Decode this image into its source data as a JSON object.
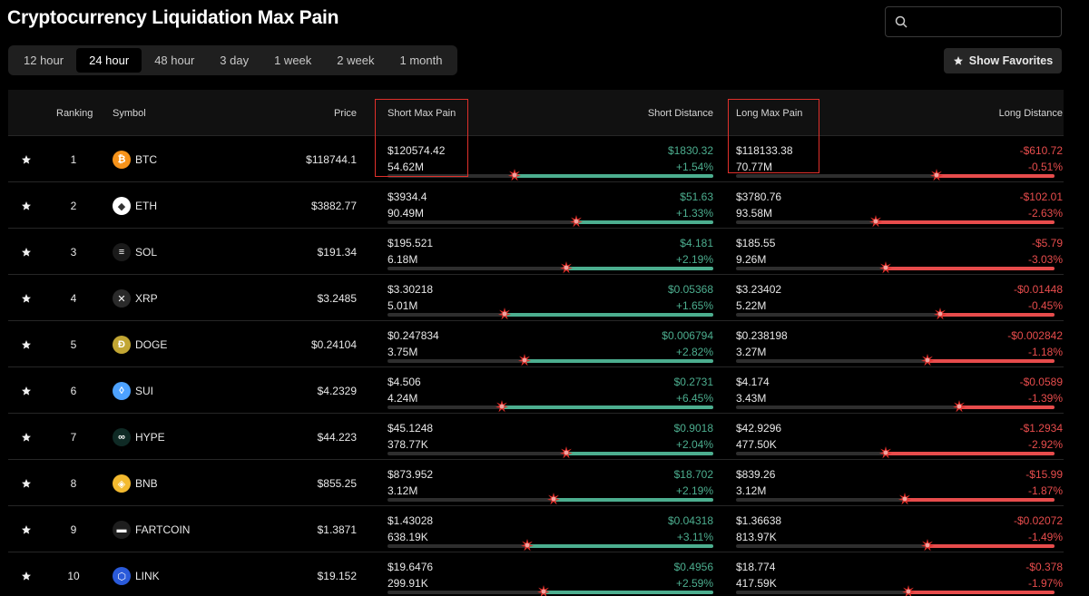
{
  "page": {
    "title": "Cryptocurrency Liquidation Max Pain"
  },
  "search": {
    "placeholder": "",
    "icon": "search-icon"
  },
  "tabs": [
    {
      "label": "12 hour",
      "active": false
    },
    {
      "label": "24 hour",
      "active": true
    },
    {
      "label": "48 hour",
      "active": false
    },
    {
      "label": "3 day",
      "active": false
    },
    {
      "label": "1 week",
      "active": false
    },
    {
      "label": "2 week",
      "active": false
    },
    {
      "label": "1 month",
      "active": false
    }
  ],
  "favorites_button": {
    "label": "Show Favorites",
    "icon": "star-icon"
  },
  "table": {
    "headers": {
      "ranking": "Ranking",
      "symbol": "Symbol",
      "price": "Price",
      "short_max_pain": "Short Max Pain",
      "short_distance": "Short Distance",
      "long_max_pain": "Long Max Pain",
      "long_distance": "Long Distance"
    },
    "rows": [
      {
        "rank": "1",
        "symbol": "BTC",
        "price": "$118744.1",
        "short_price": "$120574.42",
        "short_amount": "54.62M",
        "short_dist": "$1830.32",
        "short_pct": "+1.54%",
        "short_level": 0.61,
        "long_price": "$118133.38",
        "long_amount": "70.77M",
        "long_dist": "-$610.72",
        "long_pct": "-0.51%",
        "long_level": 0.37,
        "icon_color": "#f7931a",
        "icon_glyph": "₿"
      },
      {
        "rank": "2",
        "symbol": "ETH",
        "price": "$3882.77",
        "short_price": "$3934.4",
        "short_amount": "90.49M",
        "short_dist": "$51.63",
        "short_pct": "+1.33%",
        "short_level": 0.42,
        "long_price": "$3780.76",
        "long_amount": "93.58M",
        "long_dist": "-$102.01",
        "long_pct": "-2.63%",
        "long_level": 0.56,
        "icon_color": "#ffffff",
        "icon_glyph": "◆"
      },
      {
        "rank": "3",
        "symbol": "SOL",
        "price": "$191.34",
        "short_price": "$195.521",
        "short_amount": "6.18M",
        "short_dist": "$4.181",
        "short_pct": "+2.19%",
        "short_level": 0.45,
        "long_price": "$185.55",
        "long_amount": "9.26M",
        "long_dist": "-$5.79",
        "long_pct": "-3.03%",
        "long_level": 0.53,
        "icon_color": "#1a1a1a",
        "icon_glyph": "≡"
      },
      {
        "rank": "4",
        "symbol": "XRP",
        "price": "$3.2485",
        "short_price": "$3.30218",
        "short_amount": "5.01M",
        "short_dist": "$0.05368",
        "short_pct": "+1.65%",
        "short_level": 0.64,
        "long_price": "$3.23402",
        "long_amount": "5.22M",
        "long_dist": "-$0.01448",
        "long_pct": "-0.45%",
        "long_level": 0.36,
        "icon_color": "#2a2a2a",
        "icon_glyph": "✕"
      },
      {
        "rank": "5",
        "symbol": "DOGE",
        "price": "$0.24104",
        "short_price": "$0.247834",
        "short_amount": "3.75M",
        "short_dist": "$0.006794",
        "short_pct": "+2.82%",
        "short_level": 0.58,
        "long_price": "$0.238198",
        "long_amount": "3.27M",
        "long_dist": "-$0.002842",
        "long_pct": "-1.18%",
        "long_level": 0.4,
        "icon_color": "#c2a633",
        "icon_glyph": "Ð"
      },
      {
        "rank": "6",
        "symbol": "SUI",
        "price": "$4.2329",
        "short_price": "$4.506",
        "short_amount": "4.24M",
        "short_dist": "$0.2731",
        "short_pct": "+6.45%",
        "short_level": 0.65,
        "long_price": "$4.174",
        "long_amount": "3.43M",
        "long_dist": "-$0.0589",
        "long_pct": "-1.39%",
        "long_level": 0.3,
        "icon_color": "#4da2ff",
        "icon_glyph": "◊"
      },
      {
        "rank": "7",
        "symbol": "HYPE",
        "price": "$44.223",
        "short_price": "$45.1248",
        "short_amount": "378.77K",
        "short_dist": "$0.9018",
        "short_pct": "+2.04%",
        "short_level": 0.45,
        "long_price": "$42.9296",
        "long_amount": "477.50K",
        "long_dist": "-$1.2934",
        "long_pct": "-2.92%",
        "long_level": 0.53,
        "icon_color": "#0f2a25",
        "icon_glyph": "∞"
      },
      {
        "rank": "8",
        "symbol": "BNB",
        "price": "$855.25",
        "short_price": "$873.952",
        "short_amount": "3.12M",
        "short_dist": "$18.702",
        "short_pct": "+2.19%",
        "short_level": 0.49,
        "long_price": "$839.26",
        "long_amount": "3.12M",
        "long_dist": "-$15.99",
        "long_pct": "-1.87%",
        "long_level": 0.47,
        "icon_color": "#f3ba2f",
        "icon_glyph": "◈"
      },
      {
        "rank": "9",
        "symbol": "FARTCOIN",
        "price": "$1.3871",
        "short_price": "$1.43028",
        "short_amount": "638.19K",
        "short_dist": "$0.04318",
        "short_pct": "+3.11%",
        "short_level": 0.57,
        "long_price": "$1.36638",
        "long_amount": "813.97K",
        "long_dist": "-$0.02072",
        "long_pct": "-1.49%",
        "long_level": 0.4,
        "icon_color": "#1e1e1e",
        "icon_glyph": "▬"
      },
      {
        "rank": "10",
        "symbol": "LINK",
        "price": "$19.152",
        "short_price": "$19.6476",
        "short_amount": "299.91K",
        "short_dist": "$0.4956",
        "short_pct": "+2.59%",
        "short_level": 0.52,
        "long_price": "$18.774",
        "long_amount": "417.59K",
        "long_dist": "-$0.378",
        "long_pct": "-1.97%",
        "long_level": 0.46,
        "icon_color": "#2a5ada",
        "icon_glyph": "⬡"
      }
    ]
  },
  "colors": {
    "short": "#4cae8f",
    "long": "#e74c4c",
    "highlight": "#e0302b"
  }
}
